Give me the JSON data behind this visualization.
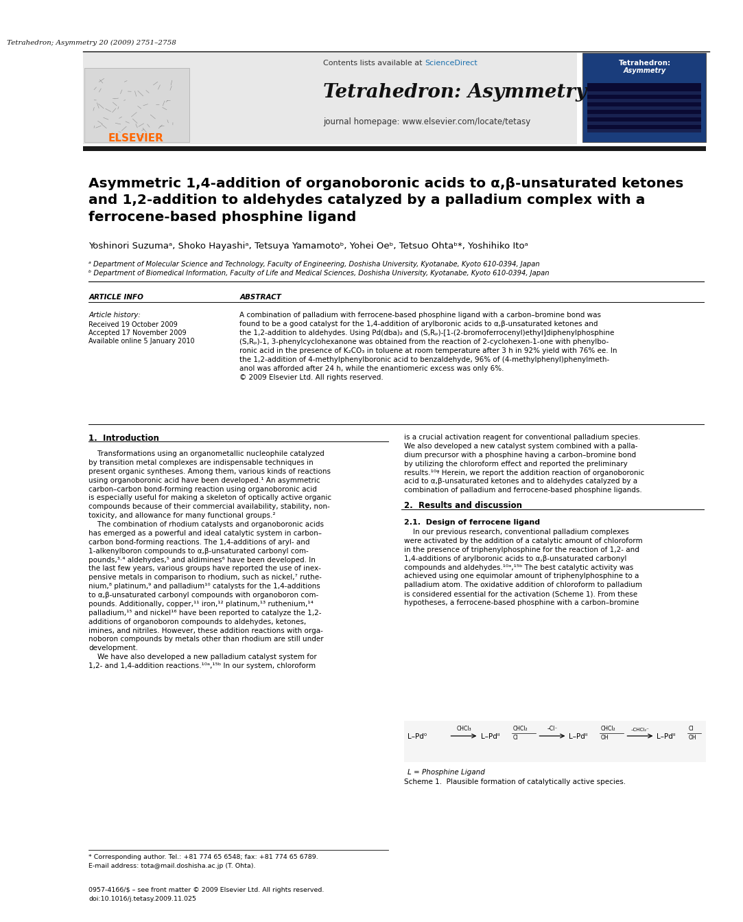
{
  "page_title_line": "Tetrahedron; Asymmetry 20 (2009) 2751–2758",
  "journal_name": "Tetrahedron: Asymmetry",
  "journal_homepage": "journal homepage: www.elsevier.com/locate/tetasy",
  "contents_available": "Contents lists available at ",
  "science_direct": "ScienceDirect",
  "elsevier_text": "ELSEVIER",
  "article_title": "Asymmetric 1,4-addition of organoboronic acids to α,β-unsaturated ketones\nand 1,2-addition to aldehydes catalyzed by a palladium complex with a\nferrocene-based phosphine ligand",
  "authors": "Yoshinori Suzumaᵃ, Shoko Hayashiᵃ, Tetsuya Yamamotoᵇ, Yohei Oeᵇ, Tetsuo Ohtaᵇ*, Yoshihiko Itoᵃ",
  "affiliation_a": "ᵃ Department of Molecular Science and Technology, Faculty of Engineering, Doshisha University, Kyotanabe, Kyoto 610-0394, Japan",
  "affiliation_b": "ᵇ Department of Biomedical Information, Faculty of Life and Medical Sciences, Doshisha University, Kyotanabe, Kyoto 610-0394, Japan",
  "article_info_header": "ARTICLE INFO",
  "article_history_header": "Article history:",
  "received": "Received 19 October 2009",
  "accepted": "Accepted 17 November 2009",
  "available": "Available online 5 January 2010",
  "abstract_header": "ABSTRACT",
  "abstract_text": "A combination of palladium with ferrocene-based phosphine ligand with a carbon–bromine bond was\nfound to be a good catalyst for the 1,4-addition of arylboronic acids to α,β-unsaturated ketones and\nthe 1,2-addition to aldehydes. Using Pd(dba)₂ and (S,Rₚ)-[1-(2-bromoferrocenyl)ethyl]diphenylphosphine\n(S,Rₚ)-1, 3-phenylcyclohexanone was obtained from the reaction of 2-cyclohexen-1-one with phenylbo-\nronic acid in the presence of K₂CO₃ in toluene at room temperature after 3 h in 92% yield with 76% ee. In\nthe 1,2-addition of 4-methylphenylboronic acid to benzaldehyde, 96% of (4-methylphenyl)phenylmeth-\nanol was afforded after 24 h, while the enantiomeric excess was only 6%.\n© 2009 Elsevier Ltd. All rights reserved.",
  "intro_header": "1.  Introduction",
  "intro_text": "    Transformations using an organometallic nucleophile catalyzed\nby transition metal complexes are indispensable techniques in\npresent organic syntheses. Among them, various kinds of reactions\nusing organoboronic acid have been developed.¹ An asymmetric\ncarbon–carbon bond-forming reaction using organoboronic acid\nis especially useful for making a skeleton of optically active organic\ncompounds because of their commercial availability, stability, non-\ntoxicity, and allowance for many functional groups.²\n    The combination of rhodium catalysts and organoboronic acids\nhas emerged as a powerful and ideal catalytic system in carbon–\ncarbon bond-forming reactions. The 1,4-additions of aryl- and\n1-alkenylboron compounds to α,β-unsaturated carbonyl com-\npounds,³‧⁴ aldehydes,⁵ and aldimines⁶ have been developed. In\nthe last few years, various groups have reported the use of inex-\npensive metals in comparison to rhodium, such as nickel,⁷ ruthe-\nnium,⁸ platinum,⁹ and palladium¹⁰ catalysts for the 1,4-additions\nto α,β-unsaturated carbonyl compounds with organoboron com-\npounds. Additionally, copper,¹¹ iron,¹² platinum,¹³ ruthenium,¹⁴\npalladium,¹⁵ and nickel¹⁶ have been reported to catalyze the 1,2-\nadditions of organoboron compounds to aldehydes, ketones,\nimines, and nitriles. However, these addition reactions with orga-\nnoboron compounds by metals other than rhodium are still under\ndevelopment.\n    We have also developed a new palladium catalyst system for\n1,2- and 1,4-addition reactions.¹⁰ᵃ,¹⁵ᵇ In our system, chloroform",
  "right_col_intro": "is a crucial activation reagent for conventional palladium species.\nWe also developed a new catalyst system combined with a palla-\ndium precursor with a phosphine having a carbon–bromine bond\nby utilizing the chloroform effect and reported the preliminary\nresults.¹⁰ᵠ Herein, we report the addition reaction of organoboronic\nacid to α,β-unsaturated ketones and to aldehydes catalyzed by a\ncombination of palladium and ferrocene-based phosphine ligands.",
  "results_header": "2.  Results and discussion",
  "design_header": "2.1.  Design of ferrocene ligand",
  "design_text": "    In our previous research, conventional palladium complexes\nwere activated by the addition of a catalytic amount of chloroform\nin the presence of triphenylphosphine for the reaction of 1,2- and\n1,4-additions of arylboronic acids to α,β-unsaturated carbonyl\ncompounds and aldehydes.¹⁰ᵃ,¹⁵ᵇ The best catalytic activity was\nachieved using one equimolar amount of triphenylphosphine to a\npalladium atom. The oxidative addition of chloroform to palladium\nis considered essential for the activation (Scheme 1). From these\nhypotheses, a ferrocene-based phosphine with a carbon–bromine",
  "scheme_ligand": "L = Phosphine Ligand",
  "scheme_label": "Scheme 1.  Plausible formation of catalytically active species.",
  "footnote_star": "* Corresponding author. Tel.: +81 774 65 6548; fax: +81 774 65 6789.",
  "footnote_email": "E-mail address: tota@mail.doshisha.ac.jp (T. Ohta).",
  "footer_issn": "0957-4166/$ – see front matter © 2009 Elsevier Ltd. All rights reserved.",
  "footer_doi": "doi:10.1016/j.tetasy.2009.11.025",
  "header_bg": "#e8e8e8",
  "elsevier_orange": "#FF6600",
  "science_direct_blue": "#1a6fad",
  "black": "#000000",
  "white": "#ffffff",
  "dark_bar": "#1a1a1a"
}
